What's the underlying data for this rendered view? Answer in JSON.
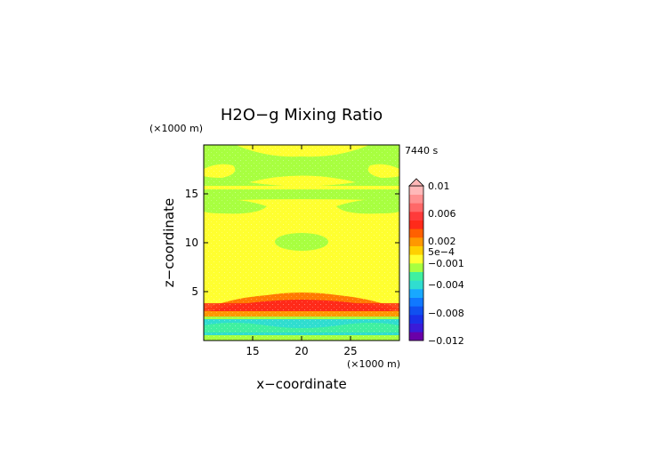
{
  "chart_data": {
    "type": "heatmap",
    "title": "H2O−g Mixing Ratio",
    "time_label": "7440 s",
    "xlabel": "x−coordinate",
    "ylabel": "z−coordinate",
    "x_unit": "(×1000 m)",
    "y_unit": "(×1000 m)",
    "xlim": [
      10,
      30
    ],
    "ylim": [
      0,
      20
    ],
    "x_ticks": [
      15,
      20,
      25
    ],
    "y_ticks": [
      5,
      10,
      15
    ],
    "grid": false,
    "legend": "right",
    "colorbar": {
      "ticks": [
        "0.01",
        "0.006",
        "0.002",
        "5e−4",
        "−0.001",
        "−0.004",
        "−0.008",
        "−0.012"
      ],
      "levels": [
        0.01,
        0.006,
        0.002,
        0.0005,
        -0.001,
        -0.004,
        -0.008,
        -0.012
      ],
      "colors": [
        "#6a00a8",
        "#3a1bd8",
        "#1a30e8",
        "#1050f0",
        "#1078ff",
        "#18a8ff",
        "#30ddd0",
        "#40f0a0",
        "#a8ff40",
        "#ffff30",
        "#ffd000",
        "#ff9800",
        "#ff6000",
        "#ff2a1a",
        "#ff3a3a",
        "#ff6868",
        "#ff9090",
        "#ffb8b8"
      ]
    },
    "field_levels": [
      {
        "z_range": [
          0,
          0.5
        ],
        "value": -0.0005,
        "color": "#a8ff40"
      },
      {
        "z_range": [
          0.5,
          2.2
        ],
        "value": -0.002,
        "color": "#30ddd0"
      },
      {
        "z_range": [
          2.2,
          2.6
        ],
        "value": -0.0005,
        "color": "#a8ff40"
      },
      {
        "z_range": [
          2.6,
          3.2
        ],
        "value": 0.0012,
        "color": "#ff9800"
      },
      {
        "z_range": [
          3.2,
          4.2
        ],
        "value": 0.004,
        "color": "#ff2a1a"
      },
      {
        "z_range": [
          4.2,
          5.0
        ],
        "value": 0.0014,
        "color": "#ff7a00"
      },
      {
        "z_range": [
          5.0,
          16.3
        ],
        "value": 0.0002,
        "color": "#ffff30"
      },
      {
        "z_range": [
          16.3,
          20
        ],
        "value": -0.0005,
        "color": "#a8ff40"
      }
    ]
  }
}
